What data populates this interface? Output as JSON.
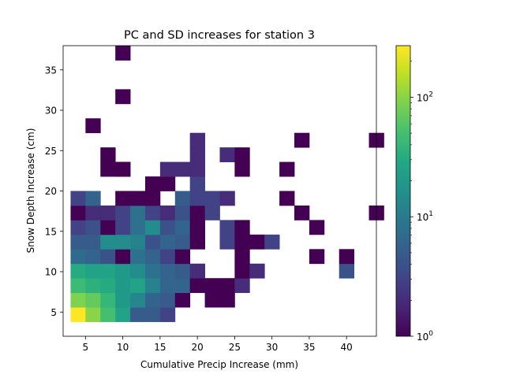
{
  "chart_data": {
    "type": "heatmap",
    "title": "PC and SD increases for station 3",
    "xlabel": "Cumulative Precip Increase (mm)",
    "ylabel": "Snow Depth Increase (cm)",
    "xlim": [
      2.0,
      44.0
    ],
    "ylim": [
      2.0,
      38.0
    ],
    "bin_width_x": 2.0,
    "bin_width_y": 1.8,
    "x_ticks": [
      5,
      10,
      15,
      20,
      25,
      30,
      35,
      40
    ],
    "y_ticks": [
      5,
      10,
      15,
      20,
      25,
      30,
      35
    ],
    "grid": false,
    "colorbar": {
      "scale": "log",
      "colormap": "viridis",
      "range": [
        1,
        270
      ],
      "ticks": [
        1,
        10,
        100
      ],
      "tick_labels": [
        "10",
        "10",
        "10"
      ],
      "tick_exponents": [
        "0",
        "1",
        "2"
      ]
    },
    "counts": [
      [
        3,
        2,
        1,
        270
      ],
      [
        5,
        2,
        1,
        100
      ],
      [
        7,
        2,
        1,
        50
      ],
      [
        9,
        2,
        1,
        25
      ],
      [
        11,
        2,
        1,
        5
      ],
      [
        13,
        2,
        1,
        5
      ],
      [
        15,
        2,
        1,
        3
      ],
      [
        3,
        3,
        1,
        90
      ],
      [
        5,
        3,
        1,
        70
      ],
      [
        7,
        3,
        1,
        40
      ],
      [
        9,
        3,
        1,
        20
      ],
      [
        11,
        3,
        1,
        13
      ],
      [
        13,
        3,
        1,
        6
      ],
      [
        15,
        3,
        1,
        5
      ],
      [
        17,
        3,
        1,
        1
      ],
      [
        21,
        3,
        2,
        1
      ],
      [
        3,
        4,
        1,
        45
      ],
      [
        5,
        4,
        1,
        35
      ],
      [
        7,
        4,
        1,
        30
      ],
      [
        9,
        4,
        1,
        20
      ],
      [
        11,
        4,
        1,
        25
      ],
      [
        13,
        4,
        1,
        12
      ],
      [
        15,
        4,
        1,
        6
      ],
      [
        17,
        4,
        1,
        6
      ],
      [
        19,
        4,
        1,
        1
      ],
      [
        21,
        4,
        1,
        1
      ],
      [
        23,
        4,
        1,
        1
      ],
      [
        25,
        4,
        1,
        2
      ],
      [
        3,
        5,
        1,
        30
      ],
      [
        5,
        5,
        1,
        25
      ],
      [
        7,
        5,
        1,
        25
      ],
      [
        9,
        5,
        1,
        20
      ],
      [
        11,
        5,
        1,
        15
      ],
      [
        13,
        5,
        1,
        8
      ],
      [
        15,
        5,
        1,
        6
      ],
      [
        17,
        5,
        1,
        5
      ],
      [
        19,
        5,
        1,
        2
      ],
      [
        25,
        5,
        1,
        1
      ],
      [
        27,
        5,
        1,
        2
      ],
      [
        39,
        5,
        1,
        4
      ],
      [
        3,
        6,
        1,
        7
      ],
      [
        5,
        6,
        1,
        6
      ],
      [
        7,
        6,
        1,
        4
      ],
      [
        9,
        6,
        1,
        1
      ],
      [
        11,
        6,
        1,
        8
      ],
      [
        13,
        6,
        1,
        6
      ],
      [
        15,
        6,
        1,
        3
      ],
      [
        17,
        6,
        1,
        1
      ],
      [
        25,
        6,
        1,
        1
      ],
      [
        35,
        6,
        1,
        1
      ],
      [
        39,
        6,
        1,
        1
      ],
      [
        3,
        7,
        1,
        5
      ],
      [
        5,
        7,
        1,
        5
      ],
      [
        7,
        7,
        1,
        15
      ],
      [
        9,
        7,
        1,
        15
      ],
      [
        11,
        7,
        1,
        12
      ],
      [
        13,
        7,
        1,
        4
      ],
      [
        15,
        7,
        1,
        6
      ],
      [
        17,
        7,
        1,
        5
      ],
      [
        19,
        7,
        1,
        1
      ],
      [
        23,
        7,
        1,
        3
      ],
      [
        25,
        7,
        1,
        1
      ],
      [
        27,
        7,
        1,
        1
      ],
      [
        29,
        7,
        1,
        3
      ],
      [
        3,
        8,
        1,
        3
      ],
      [
        5,
        8,
        1,
        4
      ],
      [
        7,
        8,
        1,
        1
      ],
      [
        9,
        8,
        1,
        3
      ],
      [
        11,
        8,
        1,
        8
      ],
      [
        13,
        8,
        1,
        15
      ],
      [
        15,
        8,
        1,
        4
      ],
      [
        17,
        8,
        1,
        6
      ],
      [
        19,
        8,
        1,
        1
      ],
      [
        23,
        8,
        1,
        3
      ],
      [
        25,
        8,
        1,
        1
      ],
      [
        35,
        8,
        1,
        1
      ],
      [
        3,
        9,
        1,
        1
      ],
      [
        5,
        9,
        1,
        2
      ],
      [
        7,
        9,
        1,
        2
      ],
      [
        9,
        9,
        1,
        3
      ],
      [
        11,
        9,
        1,
        8
      ],
      [
        13,
        9,
        1,
        3
      ],
      [
        15,
        9,
        1,
        2
      ],
      [
        17,
        9,
        1,
        4
      ],
      [
        19,
        9,
        1,
        1
      ],
      [
        21,
        9,
        1,
        3
      ],
      [
        33,
        9,
        1,
        1
      ],
      [
        43,
        9,
        1,
        1
      ],
      [
        3,
        10,
        1,
        3
      ],
      [
        5,
        10,
        1,
        6
      ],
      [
        9,
        10,
        2,
        1
      ],
      [
        13,
        10,
        1,
        1
      ],
      [
        17,
        10,
        1,
        5
      ],
      [
        19,
        10,
        1,
        3
      ],
      [
        21,
        10,
        1,
        3
      ],
      [
        23,
        10,
        1,
        2
      ],
      [
        31,
        10,
        1,
        1
      ],
      [
        13,
        11,
        2,
        1
      ],
      [
        19,
        11,
        1,
        3
      ],
      [
        7,
        12,
        2,
        1
      ],
      [
        9,
        12,
        1,
        1
      ],
      [
        15,
        12,
        3,
        2
      ],
      [
        19,
        12,
        1,
        2
      ],
      [
        25,
        12,
        1,
        1
      ],
      [
        31,
        12,
        1,
        1
      ],
      [
        7,
        13,
        1,
        1
      ],
      [
        19,
        13,
        1,
        2
      ],
      [
        23,
        13,
        1,
        2
      ],
      [
        25,
        13,
        1,
        1
      ],
      [
        19,
        14,
        1,
        2
      ],
      [
        33,
        14,
        1,
        1
      ],
      [
        43,
        14,
        1,
        1
      ],
      [
        5,
        15,
        1,
        1
      ],
      [
        9,
        17,
        1,
        1
      ],
      [
        9,
        20,
        1,
        1
      ]
    ]
  }
}
